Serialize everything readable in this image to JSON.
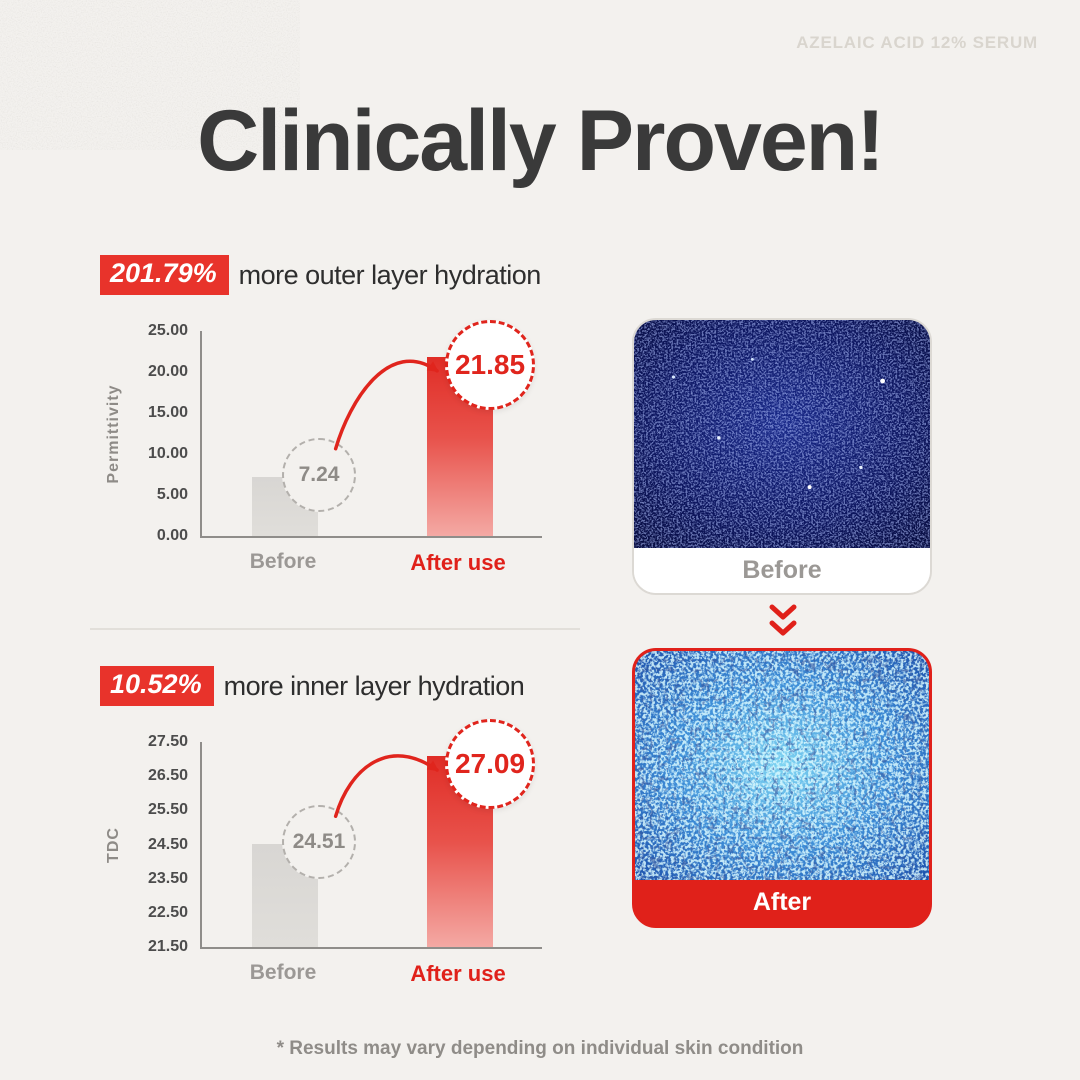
{
  "brand": "AZELAIC ACID 12% SERUM",
  "title": "Clinically Proven!",
  "footnote": "* Results may vary depending on individual skin condition",
  "colors": {
    "accent_red": "#e0211a",
    "badge_red": "#e8332b",
    "bar_gray": "#dcdad6",
    "dark_text": "#3a3a3a",
    "gray_text": "#9b9895"
  },
  "comparison_images": {
    "before_label": "Before",
    "after_label": "After",
    "arrow_icon": "double-chevron-down"
  },
  "chart_data": [
    {
      "type": "bar",
      "badge": "201.79%",
      "caption": "more outer layer hydration",
      "ylabel": "Permittivity",
      "categories": [
        "Before",
        "After use"
      ],
      "values": [
        7.24,
        21.85
      ],
      "value_labels": [
        "7.24",
        "21.85"
      ],
      "ylim": [
        0,
        25
      ],
      "ytick_step": 5,
      "yticks": [
        "25.00",
        "20.00",
        "15.00",
        "10.00",
        "5.00",
        "0.00"
      ],
      "grid": false,
      "legend": "none"
    },
    {
      "type": "bar",
      "badge": "10.52%",
      "caption": "more inner layer hydration",
      "ylabel": "TDC",
      "categories": [
        "Before",
        "After use"
      ],
      "values": [
        24.51,
        27.09
      ],
      "value_labels": [
        "24.51",
        "27.09"
      ],
      "ylim": [
        21.5,
        27.5
      ],
      "ytick_step": 1,
      "yticks": [
        "27.50",
        "26.50",
        "25.50",
        "24.50",
        "23.50",
        "22.50",
        "21.50"
      ],
      "grid": false,
      "legend": "none"
    }
  ]
}
